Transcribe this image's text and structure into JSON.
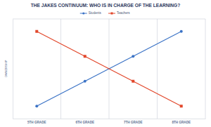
{
  "chart_data": {
    "type": "line",
    "title": "THE JAKES CONTINUUM: WHO IS IN CHARGE OF THE LEARNING?",
    "y_label": "OWNERSHIP",
    "categories": [
      "5TH GRADE",
      "6TH GRADE",
      "7TH GRADE",
      "8TH GRADE"
    ],
    "series": [
      {
        "name": "Students",
        "color": "#3b73c6",
        "marker": "circle",
        "values": [
          1,
          2,
          3,
          4
        ]
      },
      {
        "name": "Teachers",
        "color": "#e2472b",
        "marker": "square",
        "values": [
          4,
          3,
          2,
          1
        ]
      }
    ],
    "ylim": [
      0.5,
      4.5
    ],
    "grid": true,
    "legend": "top",
    "tick_labels": "x"
  }
}
